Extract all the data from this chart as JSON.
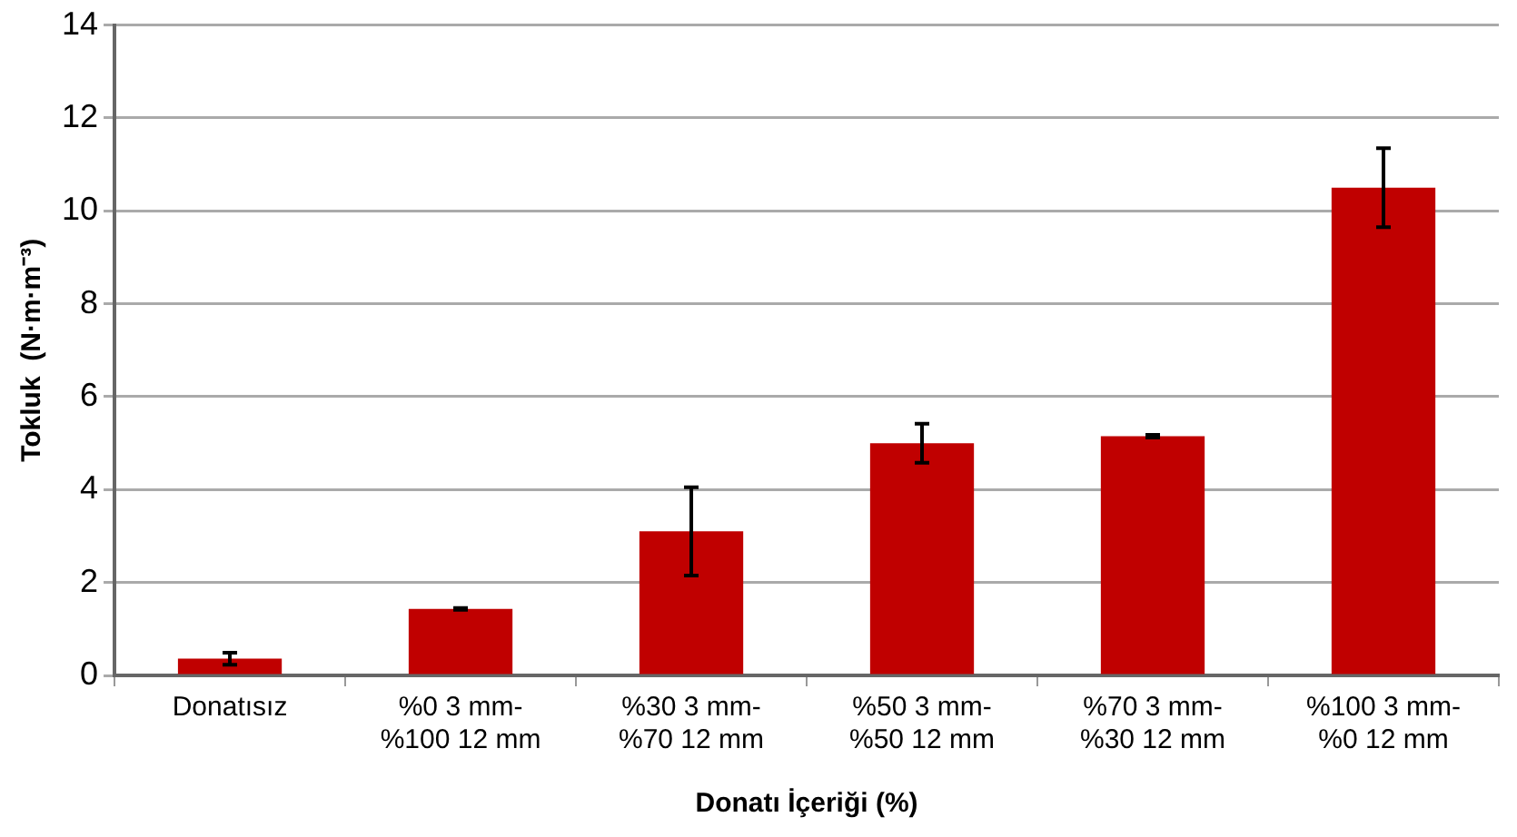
{
  "chart_data": {
    "type": "bar",
    "xlabel": "Donatı İçeriği (%)",
    "ylabel": "Tokluk  (N·m·m⁻³)",
    "categories": [
      "Donatısız",
      "%0 3 mm-%100 12 mm",
      "%30 3 mm-%70 12 mm",
      "%50 3 mm-%50 12 mm",
      "%70 3 mm-%30 12 mm",
      "%100 3 mm-%0 12 mm"
    ],
    "values": [
      0.36,
      1.43,
      3.1,
      5.0,
      5.15,
      10.5
    ],
    "errors": [
      0.13,
      0.02,
      0.95,
      0.42,
      0.03,
      0.85
    ],
    "color": "#c00000",
    "ylim": [
      0,
      14
    ],
    "yticks": [
      0,
      2,
      4,
      6,
      8,
      10,
      12,
      14
    ],
    "grid": "y",
    "legend": false
  }
}
